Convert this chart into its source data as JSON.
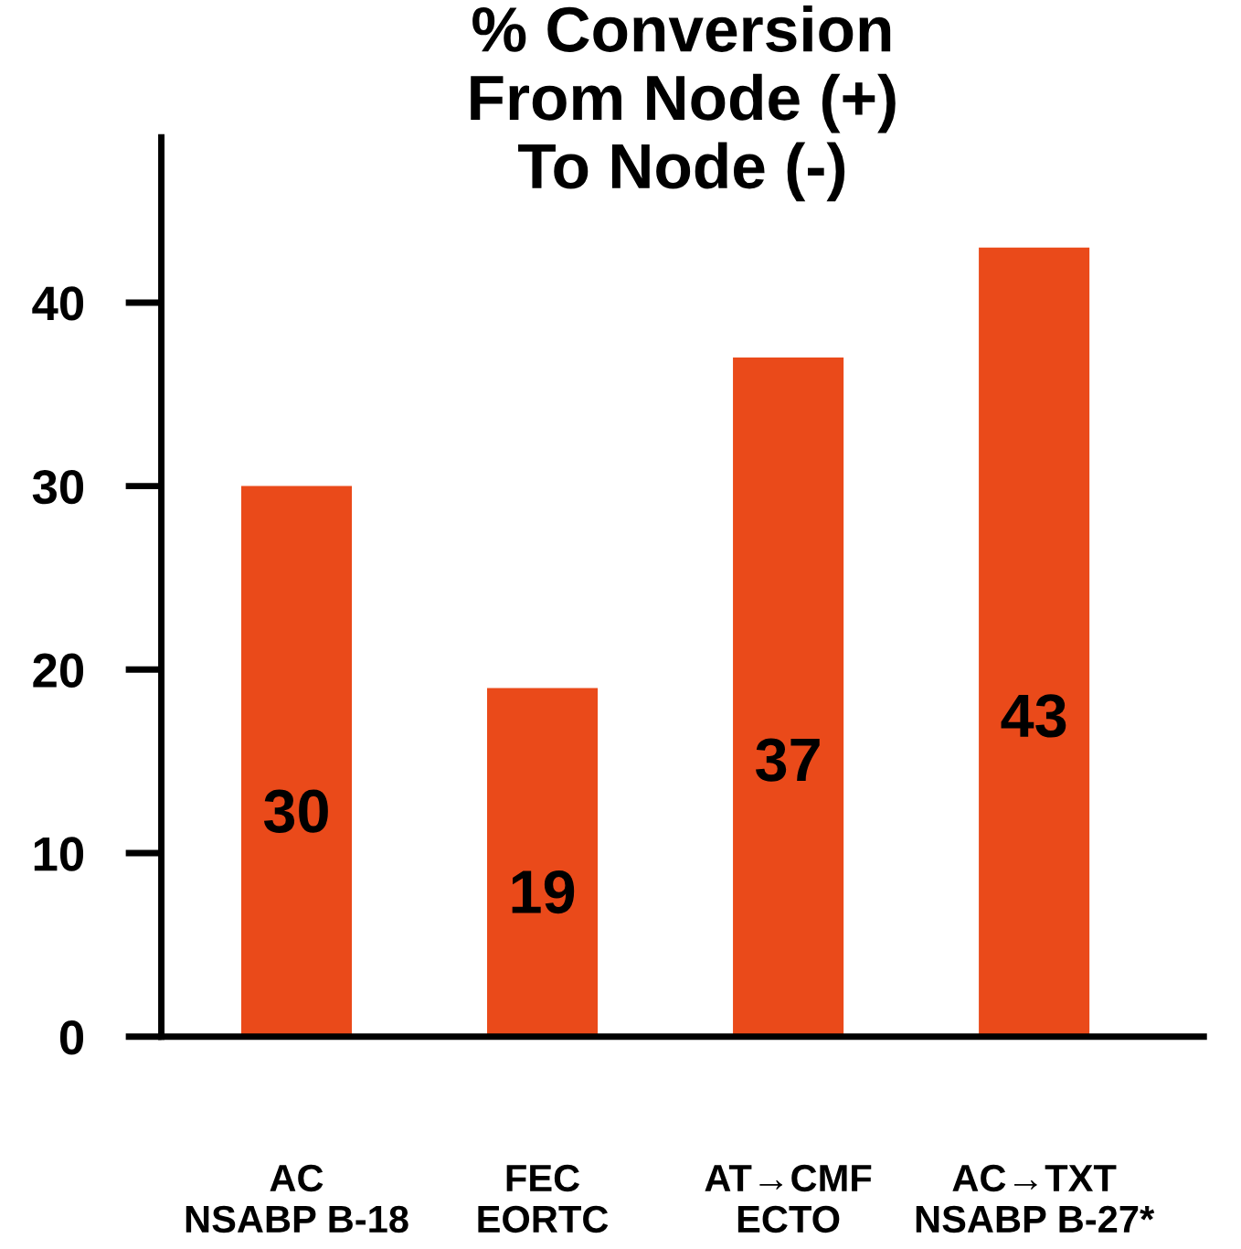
{
  "chart_data": {
    "type": "bar",
    "title": "% Conversion\nFrom Node (+)\nTo Node (-)",
    "categories": [
      "AC\nNSABP B-18",
      "FEC\nEORTC",
      "AT→CMF\nECTO",
      "AC→TXT\nNSABP B-27*"
    ],
    "values": [
      30,
      19,
      37,
      43
    ],
    "color": "#ea4a1a",
    "data_labels": true,
    "ylim": [
      0,
      49
    ],
    "yticks": [
      0,
      10,
      20,
      30,
      40
    ],
    "grid": false,
    "legend": false
  }
}
